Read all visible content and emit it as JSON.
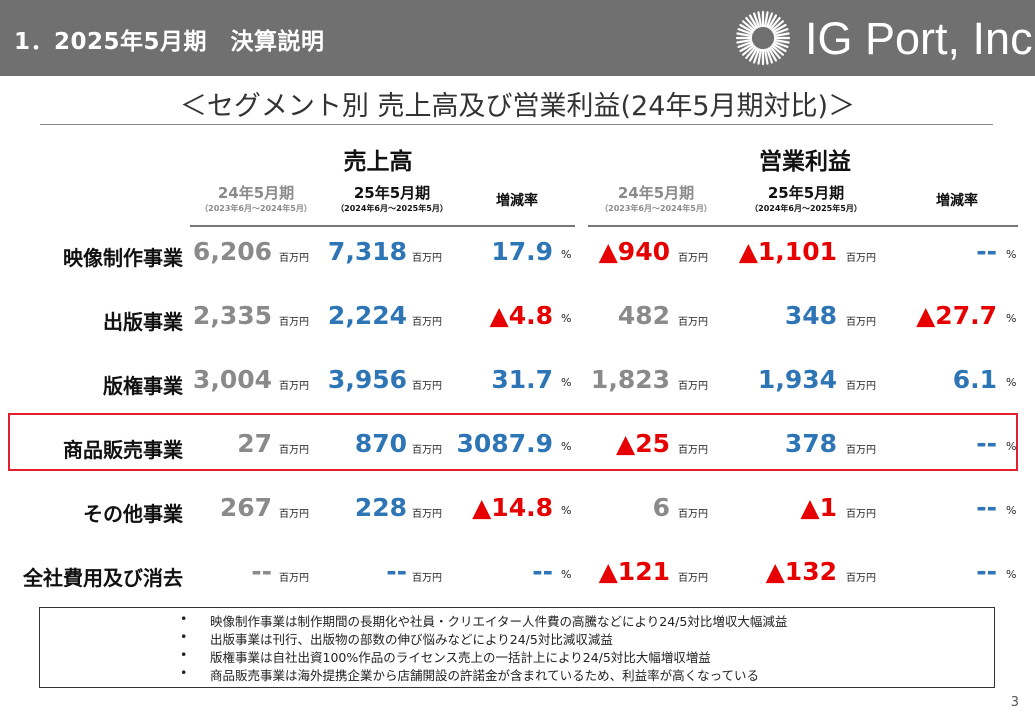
{
  "header": {
    "title": "1．2025年5月期　決算説明",
    "logo_text": "IG Port, Inc."
  },
  "subtitle": "＜セグメント別 売上高及び営業利益(24年5月期対比)＞",
  "groups": {
    "sales": "売上高",
    "op_income": "営業利益"
  },
  "columns": {
    "prev": {
      "label": "24年5月期",
      "period": "（2023年6月～2024年5月）"
    },
    "curr": {
      "label": "25年5月期",
      "period": "（2024年6月～2025年5月）"
    },
    "change": "増減率"
  },
  "units": {
    "money": "百万円",
    "percent": "%"
  },
  "rows": [
    {
      "segment": "映像制作事業",
      "sales_prev": "6,206",
      "sales_curr": "7,318",
      "sales_change": "17.9",
      "op_prev": "▲940",
      "op_curr": "▲1,101",
      "op_change": "--"
    },
    {
      "segment": "出版事業",
      "sales_prev": "2,335",
      "sales_curr": "2,224",
      "sales_change": "▲4.8",
      "op_prev": "482",
      "op_curr": "348",
      "op_change": "▲27.7"
    },
    {
      "segment": "版権事業",
      "sales_prev": "3,004",
      "sales_curr": "3,956",
      "sales_change": "31.7",
      "op_prev": "1,823",
      "op_curr": "1,934",
      "op_change": "6.1"
    },
    {
      "segment": "商品販売事業",
      "sales_prev": "27",
      "sales_curr": "870",
      "sales_change": "3087.9",
      "op_prev": "▲25",
      "op_curr": "378",
      "op_change": "--"
    },
    {
      "segment": "その他事業",
      "sales_prev": "267",
      "sales_curr": "228",
      "sales_change": "▲14.8",
      "op_prev": "6",
      "op_curr": "▲1",
      "op_change": "--"
    },
    {
      "segment": "全社費用及び消去",
      "sales_prev": "--",
      "sales_curr": "--",
      "sales_change": "--",
      "op_prev": "▲121",
      "op_curr": "▲132",
      "op_change": "--"
    }
  ],
  "notes": [
    "映像制作事業は制作期間の長期化や社員・クリエイター人件費の高騰などにより24/5対比増収大幅減益",
    "出版事業は刊行、出版物の部数の伸び悩みなどにより24/5対比減収減益",
    "版権事業は自社出資100%作品のライセンス売上の一括計上により24/5対比大幅増収増益",
    "商品販売事業は海外提携企業から店舗開設の許諾金が含まれているため、利益率が高くなっている"
  ],
  "note_bullet": "•",
  "page_number": "3",
  "colors": {
    "gray": "#8a8a8a",
    "blue": "#2e75b6",
    "red": "#e60000",
    "highlight": "#e0202a",
    "header_bg": "#707070"
  }
}
